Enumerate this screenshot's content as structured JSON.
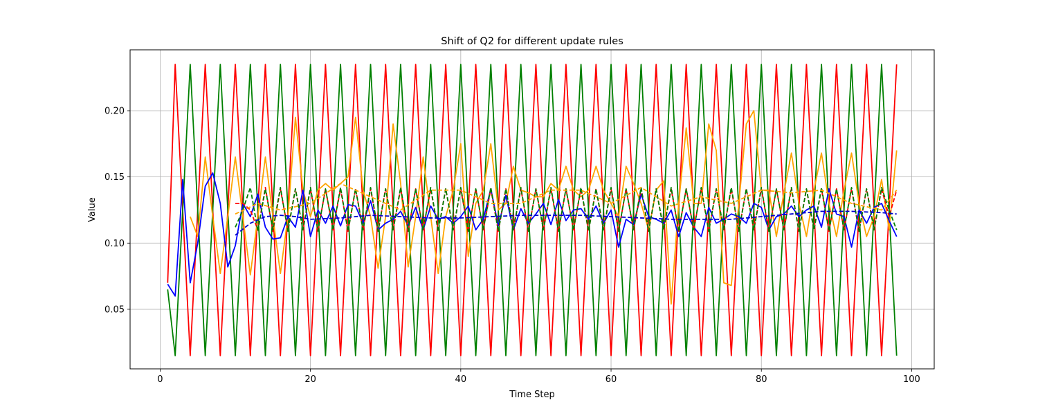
{
  "chart_data": {
    "type": "line",
    "title": "Shift of Q2 for different update rules",
    "xlabel": "Time Step",
    "ylabel": "Value",
    "xlim": [
      -4,
      103
    ],
    "ylim": [
      0.005,
      0.246
    ],
    "xticks": [
      0,
      20,
      40,
      60,
      80,
      100
    ],
    "yticks": [
      0.05,
      0.1,
      0.15,
      0.2
    ],
    "ytick_labels": [
      "0.05",
      "0.10",
      "0.15",
      "0.20"
    ],
    "grid": true,
    "series": [
      {
        "color": "#ff0000",
        "style": "solid",
        "pattern": "oscillating: peaks at even steps 2,6,10,...,98; troughs at 4,8,...,96",
        "x": [
          1,
          2,
          4,
          6,
          8,
          10,
          12,
          14,
          16,
          18,
          20,
          22,
          24,
          26,
          28,
          30,
          32,
          34,
          36,
          38,
          40,
          42,
          44,
          46,
          48,
          50,
          52,
          54,
          56,
          58,
          60,
          62,
          64,
          66,
          68,
          70,
          72,
          74,
          76,
          78,
          80,
          82,
          84,
          86,
          88,
          90,
          92,
          94,
          96,
          98
        ],
        "values": [
          0.07,
          0.235,
          0.015,
          0.235,
          0.015,
          0.235,
          0.015,
          0.235,
          0.015,
          0.235,
          0.015,
          0.235,
          0.015,
          0.235,
          0.015,
          0.235,
          0.015,
          0.235,
          0.015,
          0.235,
          0.015,
          0.235,
          0.015,
          0.235,
          0.015,
          0.235,
          0.015,
          0.235,
          0.015,
          0.235,
          0.015,
          0.235,
          0.015,
          0.235,
          0.015,
          0.235,
          0.015,
          0.235,
          0.015,
          0.235,
          0.015,
          0.235,
          0.015,
          0.235,
          0.015,
          0.235,
          0.015,
          0.235,
          0.015,
          0.235
        ]
      },
      {
        "color": "#008000",
        "style": "solid",
        "pattern": "oscillating, shifted: peaks at 4,8,...,96; troughs at 2,6,...,98",
        "x": [
          1,
          2,
          4,
          6,
          8,
          10,
          12,
          14,
          16,
          18,
          20,
          22,
          24,
          26,
          28,
          30,
          32,
          34,
          36,
          38,
          40,
          42,
          44,
          46,
          48,
          50,
          52,
          54,
          56,
          58,
          60,
          62,
          64,
          66,
          68,
          70,
          72,
          74,
          76,
          78,
          80,
          82,
          84,
          86,
          88,
          90,
          92,
          94,
          96,
          98
        ],
        "values": [
          0.065,
          0.015,
          0.235,
          0.015,
          0.235,
          0.015,
          0.235,
          0.015,
          0.235,
          0.015,
          0.235,
          0.015,
          0.235,
          0.015,
          0.235,
          0.015,
          0.235,
          0.015,
          0.235,
          0.015,
          0.235,
          0.015,
          0.235,
          0.015,
          0.235,
          0.015,
          0.235,
          0.015,
          0.235,
          0.015,
          0.235,
          0.015,
          0.235,
          0.015,
          0.235,
          0.015,
          0.235,
          0.015,
          0.235,
          0.015,
          0.235,
          0.015,
          0.235,
          0.015,
          0.235,
          0.015,
          0.235,
          0.015,
          0.235,
          0.015
        ]
      },
      {
        "color": "#ffa500",
        "style": "solid",
        "x": [
          4,
          5,
          6,
          7,
          8,
          9,
          10,
          11,
          12,
          13,
          14,
          15,
          16,
          17,
          18,
          19,
          20,
          21,
          22,
          23,
          24,
          25,
          26,
          27,
          28,
          29,
          30,
          31,
          32,
          33,
          34,
          35,
          36,
          37,
          38,
          39,
          40,
          41,
          42,
          43,
          44,
          45,
          46,
          47,
          48,
          49,
          50,
          51,
          52,
          53,
          54,
          55,
          56,
          57,
          58,
          59,
          60,
          61,
          62,
          63,
          64,
          65,
          66,
          67,
          68,
          69,
          70,
          71,
          72,
          73,
          74,
          75,
          76,
          77,
          78,
          79,
          80,
          81,
          82,
          83,
          84,
          85,
          86,
          87,
          88,
          89,
          90,
          91,
          92,
          93,
          94,
          95,
          96,
          97,
          98
        ],
        "values": [
          0.12,
          0.105,
          0.165,
          0.12,
          0.077,
          0.12,
          0.165,
          0.12,
          0.076,
          0.12,
          0.165,
          0.12,
          0.077,
          0.12,
          0.195,
          0.14,
          0.12,
          0.14,
          0.145,
          0.14,
          0.145,
          0.15,
          0.195,
          0.14,
          0.12,
          0.081,
          0.12,
          0.19,
          0.145,
          0.082,
          0.12,
          0.165,
          0.12,
          0.077,
          0.12,
          0.14,
          0.175,
          0.09,
          0.13,
          0.14,
          0.175,
          0.125,
          0.13,
          0.158,
          0.14,
          0.138,
          0.135,
          0.135,
          0.145,
          0.14,
          0.158,
          0.14,
          0.135,
          0.14,
          0.158,
          0.14,
          0.13,
          0.12,
          0.158,
          0.145,
          0.13,
          0.11,
          0.14,
          0.147,
          0.054,
          0.13,
          0.187,
          0.13,
          0.13,
          0.19,
          0.17,
          0.07,
          0.068,
          0.13,
          0.19,
          0.2,
          0.14,
          0.14,
          0.105,
          0.138,
          0.168,
          0.13,
          0.105,
          0.14,
          0.168,
          0.13,
          0.105,
          0.14,
          0.168,
          0.13,
          0.105,
          0.12,
          0.148,
          0.11,
          0.17
        ]
      },
      {
        "color": "#0000ff",
        "style": "solid",
        "x": [
          1,
          2,
          3,
          4,
          5,
          6,
          7,
          8,
          9,
          10,
          11,
          12,
          13,
          14,
          15,
          16,
          17,
          18,
          19,
          20,
          21,
          22,
          23,
          24,
          25,
          26,
          27,
          28,
          29,
          30,
          31,
          32,
          33,
          34,
          35,
          36,
          37,
          38,
          39,
          40,
          41,
          42,
          43,
          44,
          45,
          46,
          47,
          48,
          49,
          50,
          51,
          52,
          53,
          54,
          55,
          56,
          57,
          58,
          59,
          60,
          61,
          62,
          63,
          64,
          65,
          66,
          67,
          68,
          69,
          70,
          71,
          72,
          73,
          74,
          75,
          76,
          77,
          78,
          79,
          80,
          81,
          82,
          83,
          84,
          85,
          86,
          87,
          88,
          89,
          90,
          91,
          92,
          93,
          94,
          95,
          96,
          97,
          98
        ],
        "values": [
          0.069,
          0.06,
          0.148,
          0.07,
          0.1,
          0.143,
          0.153,
          0.13,
          0.082,
          0.098,
          0.13,
          0.12,
          0.137,
          0.112,
          0.103,
          0.104,
          0.12,
          0.112,
          0.14,
          0.105,
          0.125,
          0.115,
          0.128,
          0.113,
          0.129,
          0.128,
          0.115,
          0.132,
          0.11,
          0.115,
          0.118,
          0.124,
          0.113,
          0.127,
          0.11,
          0.128,
          0.118,
          0.12,
          0.115,
          0.12,
          0.128,
          0.11,
          0.118,
          0.141,
          0.113,
          0.136,
          0.11,
          0.126,
          0.115,
          0.122,
          0.13,
          0.114,
          0.133,
          0.117,
          0.125,
          0.126,
          0.118,
          0.128,
          0.115,
          0.125,
          0.097,
          0.118,
          0.114,
          0.137,
          0.12,
          0.118,
          0.115,
          0.125,
          0.105,
          0.123,
          0.112,
          0.105,
          0.127,
          0.115,
          0.118,
          0.122,
          0.12,
          0.115,
          0.13,
          0.127,
          0.11,
          0.12,
          0.122,
          0.128,
          0.12,
          0.125,
          0.128,
          0.112,
          0.141,
          0.122,
          0.12,
          0.097,
          0.125,
          0.115,
          0.127,
          0.13,
          0.117,
          0.105
        ]
      },
      {
        "color": "#ff0000",
        "style": "dashed",
        "pattern": "oscillating about 0.125 with amplitude ~0.016",
        "x": [
          10,
          11,
          12,
          13,
          14,
          15,
          16,
          17,
          18,
          19,
          20,
          21,
          22,
          23,
          24,
          25,
          26,
          27,
          28,
          29,
          30,
          31,
          32,
          33,
          34,
          35,
          36,
          37,
          38,
          39,
          40,
          41,
          42,
          43,
          44,
          45,
          46,
          47,
          48,
          49,
          50,
          51,
          52,
          53,
          54,
          55,
          56,
          57,
          58,
          59,
          60,
          61,
          62,
          63,
          64,
          65,
          66,
          67,
          68,
          69,
          70,
          71,
          72,
          73,
          74,
          75,
          76,
          77,
          78,
          79,
          80,
          81,
          82,
          83,
          84,
          85,
          86,
          87,
          88,
          89,
          90,
          91,
          92,
          93,
          94,
          95,
          96,
          97,
          98
        ],
        "values": [
          0.13,
          0.13,
          0.125,
          0.11,
          0.142,
          0.109,
          0.141,
          0.11,
          0.141,
          0.11,
          0.141,
          0.109,
          0.141,
          0.11,
          0.141,
          0.109,
          0.141,
          0.11,
          0.141,
          0.109,
          0.141,
          0.11,
          0.141,
          0.109,
          0.141,
          0.11,
          0.141,
          0.109,
          0.141,
          0.11,
          0.141,
          0.109,
          0.141,
          0.11,
          0.141,
          0.109,
          0.141,
          0.11,
          0.141,
          0.109,
          0.141,
          0.11,
          0.141,
          0.109,
          0.141,
          0.11,
          0.141,
          0.109,
          0.141,
          0.11,
          0.141,
          0.109,
          0.141,
          0.11,
          0.141,
          0.109,
          0.141,
          0.11,
          0.141,
          0.109,
          0.141,
          0.11,
          0.141,
          0.109,
          0.141,
          0.11,
          0.141,
          0.109,
          0.141,
          0.11,
          0.141,
          0.109,
          0.141,
          0.11,
          0.141,
          0.109,
          0.141,
          0.11,
          0.141,
          0.109,
          0.141,
          0.11,
          0.141,
          0.109,
          0.141,
          0.11,
          0.141,
          0.12,
          0.14
        ]
      },
      {
        "color": "#008000",
        "style": "dashed",
        "pattern": "oscillating about 0.125, opposite phase to red dashed",
        "x": [
          10,
          11,
          12,
          13,
          14,
          15,
          16,
          17,
          18,
          19,
          20,
          21,
          22,
          23,
          24,
          25,
          26,
          27,
          28,
          29,
          30,
          31,
          32,
          33,
          34,
          35,
          36,
          37,
          38,
          39,
          40,
          41,
          42,
          43,
          44,
          45,
          46,
          47,
          48,
          49,
          50,
          51,
          52,
          53,
          54,
          55,
          56,
          57,
          58,
          59,
          60,
          61,
          62,
          63,
          64,
          65,
          66,
          67,
          68,
          69,
          70,
          71,
          72,
          73,
          74,
          75,
          76,
          77,
          78,
          79,
          80,
          81,
          82,
          83,
          84,
          85,
          86,
          87,
          88,
          89,
          90,
          91,
          92,
          93,
          94,
          95,
          96,
          97,
          98
        ],
        "values": [
          0.112,
          0.125,
          0.142,
          0.109,
          0.141,
          0.11,
          0.142,
          0.109,
          0.141,
          0.11,
          0.142,
          0.109,
          0.141,
          0.11,
          0.142,
          0.109,
          0.141,
          0.11,
          0.142,
          0.109,
          0.141,
          0.11,
          0.142,
          0.109,
          0.141,
          0.11,
          0.142,
          0.109,
          0.141,
          0.11,
          0.142,
          0.109,
          0.141,
          0.11,
          0.142,
          0.109,
          0.141,
          0.11,
          0.142,
          0.109,
          0.141,
          0.11,
          0.142,
          0.109,
          0.141,
          0.11,
          0.142,
          0.109,
          0.141,
          0.11,
          0.142,
          0.109,
          0.141,
          0.11,
          0.142,
          0.109,
          0.141,
          0.11,
          0.142,
          0.109,
          0.141,
          0.11,
          0.142,
          0.109,
          0.141,
          0.11,
          0.142,
          0.109,
          0.141,
          0.11,
          0.142,
          0.109,
          0.141,
          0.11,
          0.142,
          0.109,
          0.141,
          0.11,
          0.142,
          0.109,
          0.141,
          0.11,
          0.142,
          0.109,
          0.141,
          0.11,
          0.142,
          0.125,
          0.11
        ]
      },
      {
        "color": "#ffa500",
        "style": "dashed",
        "x": [
          10,
          13,
          16,
          20,
          24,
          28,
          32,
          36,
          40,
          44,
          48,
          52,
          56,
          60,
          64,
          68,
          72,
          76,
          80,
          84,
          88,
          92,
          96,
          98
        ],
        "values": [
          0.122,
          0.13,
          0.125,
          0.13,
          0.145,
          0.135,
          0.125,
          0.14,
          0.14,
          0.13,
          0.13,
          0.14,
          0.14,
          0.13,
          0.142,
          0.128,
          0.135,
          0.13,
          0.14,
          0.138,
          0.14,
          0.13,
          0.125,
          0.14
        ]
      },
      {
        "color": "#0000cd",
        "style": "dashed",
        "pattern": "smooth: rises to ~0.12 then flat around 0.118-0.125",
        "x": [
          10,
          12,
          14,
          16,
          18,
          20,
          24,
          28,
          32,
          36,
          40,
          44,
          48,
          52,
          56,
          60,
          64,
          68,
          72,
          76,
          80,
          84,
          88,
          92,
          96,
          98
        ],
        "values": [
          0.106,
          0.115,
          0.12,
          0.121,
          0.12,
          0.118,
          0.119,
          0.121,
          0.12,
          0.119,
          0.119,
          0.12,
          0.121,
          0.121,
          0.121,
          0.12,
          0.119,
          0.118,
          0.118,
          0.118,
          0.12,
          0.122,
          0.124,
          0.124,
          0.123,
          0.122
        ]
      }
    ]
  }
}
